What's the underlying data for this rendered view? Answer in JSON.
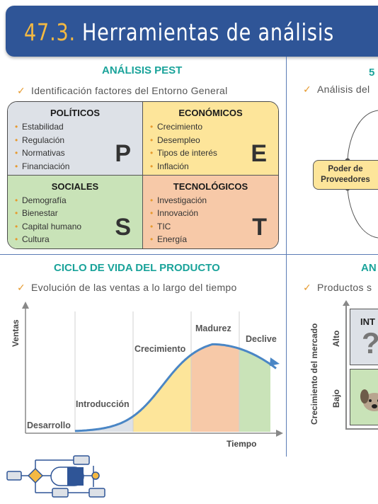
{
  "header": {
    "number": "47.3.",
    "title": "Herramientas de análisis"
  },
  "colors": {
    "header_bg": "#2f5597",
    "accent_orange": "#f4b942",
    "section_teal": "#1aa39a",
    "bullet_orange": "#e69a2e"
  },
  "pest": {
    "title": "ANÁLISIS PEST",
    "subtitle": "Identificación factores del Entorno General",
    "quadrants": [
      {
        "name": "POLÍTICOS",
        "letter": "P",
        "items": [
          "Estabilidad",
          "Regulación",
          "Normativas",
          "Financiación"
        ]
      },
      {
        "name": "ECONÓMICOS",
        "letter": "E",
        "items": [
          "Crecimiento",
          "Desempleo",
          "Tipos de interés",
          "Inflación"
        ]
      },
      {
        "name": "SOCIALES",
        "letter": "S",
        "items": [
          "Demografía",
          "Bienestar",
          "Capital humano",
          "Cultura"
        ]
      },
      {
        "name": "TECNOLÓGICOS",
        "letter": "T",
        "items": [
          "Investigación",
          "Innovación",
          "TIC",
          "Energía"
        ]
      }
    ]
  },
  "porter": {
    "title": "5",
    "subtitle": "Análisis del",
    "box_label_line1": "Poder de",
    "box_label_line2": "Proveedores"
  },
  "lifecycle": {
    "title": "CICLO DE VIDA DEL PRODUCTO",
    "subtitle": "Evolución de las ventas a lo largo del tiempo",
    "y_axis": "Ventas",
    "x_axis": "Tiempo",
    "stages": [
      "Desarrollo",
      "Introducción",
      "Crecimiento",
      "Madurez",
      "Declive"
    ],
    "stage_colors": [
      "#ffffff",
      "#dde1e7",
      "#fde59a",
      "#f7c9a8",
      "#c9e3b8"
    ]
  },
  "bcg": {
    "title": "AN",
    "subtitle": "Productos s",
    "y_axis": "Crecimiento del mercado",
    "high": "Alto",
    "low": "Bajo",
    "q1_label": "INT",
    "q1_symbol": "?"
  }
}
